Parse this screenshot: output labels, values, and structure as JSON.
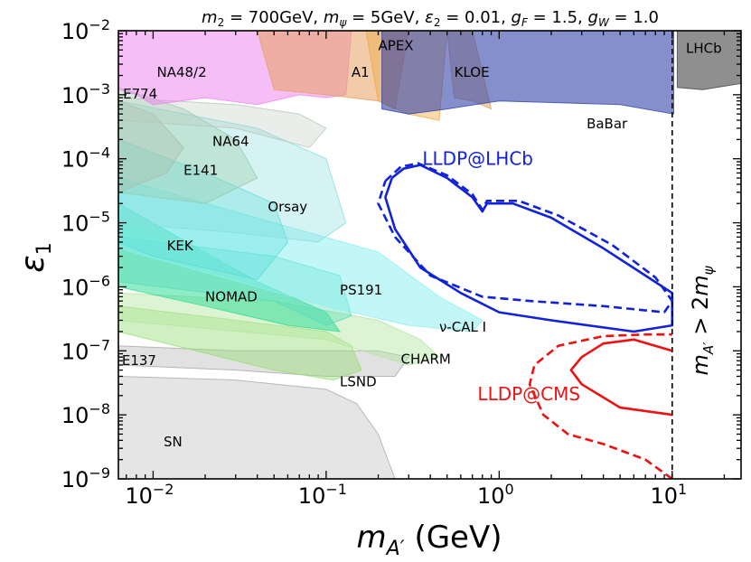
{
  "chart_data": {
    "type": "area",
    "title": "m₂ = 700GeV, mψ = 5GeV, ε₂ = 0.01, g_F = 1.5, g_W = 1.0",
    "title_parts": {
      "m2": "m",
      "m2_sub": "2",
      "m2_val": " = 700GeV, ",
      "mpsi": "m",
      "mpsi_sub": "ψ",
      "mpsi_val": " = 5GeV, ",
      "eps": "ε",
      "eps_sub": "2",
      "eps_val": " = 0.01, ",
      "gf": "g",
      "gf_sub": "F",
      "gf_val": " = 1.5, ",
      "gw": "g",
      "gw_sub": "W",
      "gw_val": " = 1.0"
    },
    "xlabel": "m_A′ (GeV)",
    "xlabel_parts": {
      "m": "m",
      "sub": "A′",
      "rest": " (GeV)"
    },
    "ylabel": "ε₁",
    "ylabel_parts": {
      "sym": "ε",
      "sub": "1"
    },
    "x_scale": "log",
    "y_scale": "log",
    "xlim": [
      0.0063,
      25
    ],
    "ylim": [
      1e-09,
      0.01
    ],
    "x_ticks": [
      {
        "value": 0.01,
        "base": "10",
        "exp": "−2"
      },
      {
        "value": 0.1,
        "base": "10",
        "exp": "−1"
      },
      {
        "value": 1,
        "base": "10",
        "exp": "0"
      },
      {
        "value": 10,
        "base": "10",
        "exp": "1"
      }
    ],
    "y_ticks": [
      {
        "value": 1e-09,
        "base": "10",
        "exp": "−9"
      },
      {
        "value": 1e-08,
        "base": "10",
        "exp": "−8"
      },
      {
        "value": 1e-07,
        "base": "10",
        "exp": "−7"
      },
      {
        "value": 1e-06,
        "base": "10",
        "exp": "−6"
      },
      {
        "value": 1e-05,
        "base": "10",
        "exp": "−5"
      },
      {
        "value": 0.0001,
        "base": "10",
        "exp": "−4"
      },
      {
        "value": 0.001,
        "base": "10",
        "exp": "−3"
      },
      {
        "value": 0.01,
        "base": "10",
        "exp": "−2"
      }
    ],
    "grid": false,
    "threshold": {
      "x": 10,
      "label": "m_A′ > 2m_ψ",
      "parts": {
        "m": "m",
        "sub": "A′",
        "mid": " > 2",
        "m2": "m",
        "sub2": "ψ"
      }
    },
    "regions": [
      {
        "name": "SN",
        "color": "#aaaaaa",
        "opacity": 0.3,
        "points": [
          [
            0.0063,
            4e-08
          ],
          [
            0.03,
            3.5e-08
          ],
          [
            0.1,
            2.5e-08
          ],
          [
            0.15,
            1.5e-08
          ],
          [
            0.2,
            5e-09
          ],
          [
            0.25,
            1e-09
          ],
          [
            0.0063,
            1e-09
          ]
        ]
      },
      {
        "name": "E137",
        "color": "#a8a8a8",
        "opacity": 0.35,
        "points": [
          [
            0.0063,
            1.2e-07
          ],
          [
            0.03,
            1e-07
          ],
          [
            0.2,
            1e-07
          ],
          [
            0.3,
            8e-08
          ],
          [
            0.25,
            4e-08
          ],
          [
            0.1,
            4e-08
          ],
          [
            0.03,
            5e-08
          ],
          [
            0.0063,
            6e-08
          ]
        ]
      },
      {
        "name": "LSND",
        "color": "#99dd77",
        "opacity": 0.45,
        "points": [
          [
            0.0063,
            5e-07
          ],
          [
            0.03,
            3e-07
          ],
          [
            0.1,
            2e-07
          ],
          [
            0.14,
            1.2e-07
          ],
          [
            0.16,
            5e-08
          ],
          [
            0.11,
            3.5e-08
          ],
          [
            0.05,
            5e-08
          ],
          [
            0.0063,
            2e-07
          ]
        ]
      },
      {
        "name": "CHARM",
        "color": "#b3e6a0",
        "opacity": 0.45,
        "points": [
          [
            0.0063,
            8e-07
          ],
          [
            0.05,
            6e-07
          ],
          [
            0.2,
            3e-07
          ],
          [
            0.35,
            1.5e-07
          ],
          [
            0.45,
            8e-08
          ],
          [
            0.3,
            6e-08
          ],
          [
            0.1,
            1.5e-07
          ],
          [
            0.0063,
            3e-07
          ]
        ]
      },
      {
        "name": "NOMAD",
        "color": "#33dd99",
        "opacity": 0.55,
        "points": [
          [
            0.0063,
            2e-05
          ],
          [
            0.04,
            1.2e-06
          ],
          [
            0.1,
            4e-07
          ],
          [
            0.12,
            2e-07
          ],
          [
            0.06,
            2.5e-07
          ],
          [
            0.02,
            5e-07
          ],
          [
            0.0063,
            1e-06
          ]
        ]
      },
      {
        "name": "PS191",
        "color": "#55ddbb",
        "opacity": 0.4,
        "points": [
          [
            0.0063,
            6e-06
          ],
          [
            0.05,
            3e-06
          ],
          [
            0.12,
            1.5e-06
          ],
          [
            0.14,
            3.5e-07
          ],
          [
            0.1,
            2.5e-07
          ],
          [
            0.05,
            6e-07
          ],
          [
            0.0063,
            1.2e-06
          ]
        ]
      },
      {
        "name": "nu-CAL I",
        "color": "#88f0f0",
        "opacity": 0.5,
        "points": [
          [
            0.0063,
            5e-05
          ],
          [
            0.05,
            1e-05
          ],
          [
            0.2,
            3.5e-06
          ],
          [
            0.45,
            7e-07
          ],
          [
            0.8,
            3e-07
          ],
          [
            0.7,
            2e-07
          ],
          [
            0.3,
            2.5e-07
          ],
          [
            0.1,
            5e-07
          ],
          [
            0.0063,
            4e-06
          ]
        ]
      },
      {
        "name": "KEK",
        "color": "#55dddd",
        "opacity": 0.35,
        "points": [
          [
            0.0063,
            0.0002
          ],
          [
            0.02,
            6e-05
          ],
          [
            0.05,
            2e-05
          ],
          [
            0.06,
            5e-06
          ],
          [
            0.04,
            1.3e-06
          ],
          [
            0.01,
            3e-06
          ],
          [
            0.0063,
            5e-06
          ]
        ]
      },
      {
        "name": "Orsay",
        "color": "#88dddd",
        "opacity": 0.35,
        "points": [
          [
            0.0063,
            0.0008
          ],
          [
            0.04,
            0.0003
          ],
          [
            0.1,
            0.0001
          ],
          [
            0.13,
            1e-05
          ],
          [
            0.09,
            5e-06
          ],
          [
            0.03,
            7e-06
          ],
          [
            0.0063,
            1e-05
          ]
        ]
      },
      {
        "name": "E141",
        "color": "#99ccaa",
        "opacity": 0.35,
        "points": [
          [
            0.0063,
            0.0013
          ],
          [
            0.015,
            0.0006
          ],
          [
            0.03,
            0.0002
          ],
          [
            0.04,
            5e-05
          ],
          [
            0.02,
            2e-05
          ],
          [
            0.0063,
            3e-05
          ]
        ]
      },
      {
        "name": "E774",
        "color": "#aabbaa",
        "opacity": 0.35,
        "points": [
          [
            0.0063,
            0.0008
          ],
          [
            0.01,
            0.0005
          ],
          [
            0.015,
            0.00015
          ],
          [
            0.012,
            6e-05
          ],
          [
            0.0063,
            3e-05
          ]
        ]
      },
      {
        "name": "NA64",
        "color": "#b8c8b8",
        "opacity": 0.3,
        "points": [
          [
            0.0063,
            0.0009
          ],
          [
            0.03,
            0.0007
          ],
          [
            0.07,
            0.0005
          ],
          [
            0.1,
            0.0003
          ],
          [
            0.08,
            0.00015
          ],
          [
            0.03,
            0.0003
          ],
          [
            0.0063,
            0.0004
          ]
        ]
      },
      {
        "name": "NA48/2",
        "color": "#ee88ee",
        "opacity": 0.55,
        "points": [
          [
            0.0063,
            0.01
          ],
          [
            0.14,
            0.01
          ],
          [
            0.13,
            0.001
          ],
          [
            0.1,
            0.0009
          ],
          [
            0.07,
            0.001
          ],
          [
            0.04,
            0.0007
          ],
          [
            0.02,
            0.0009
          ],
          [
            0.01,
            0.0007
          ],
          [
            0.008,
            0.001
          ],
          [
            0.0063,
            0.0012
          ]
        ]
      },
      {
        "name": "A1",
        "color": "#e8a060",
        "opacity": 0.55,
        "points": [
          [
            0.04,
            0.01
          ],
          [
            0.3,
            0.01
          ],
          [
            0.25,
            0.0006
          ],
          [
            0.2,
            0.0008
          ],
          [
            0.1,
            0.001
          ],
          [
            0.05,
            0.0012
          ]
        ]
      },
      {
        "name": "APEX",
        "color": "#eeaa44",
        "opacity": 0.45,
        "points": [
          [
            0.17,
            0.01
          ],
          [
            0.5,
            0.01
          ],
          [
            0.45,
            0.0004
          ],
          [
            0.3,
            0.0005
          ],
          [
            0.2,
            0.0008
          ]
        ]
      },
      {
        "name": "KLOE",
        "color": "#ddaa66",
        "opacity": 0.55,
        "points": [
          [
            0.5,
            0.01
          ],
          [
            0.7,
            0.01
          ],
          [
            0.9,
            0.0006
          ],
          [
            0.7,
            0.0008
          ],
          [
            0.55,
            0.0009
          ]
        ]
      },
      {
        "name": "BaBar",
        "color": "#3344aa",
        "opacity": 0.6,
        "points": [
          [
            0.21,
            0.01
          ],
          [
            10.2,
            0.01
          ],
          [
            10.2,
            0.0005
          ],
          [
            5,
            0.0007
          ],
          [
            1,
            0.0008
          ],
          [
            0.5,
            0.0006
          ],
          [
            0.3,
            0.0005
          ],
          [
            0.21,
            0.0006
          ]
        ]
      },
      {
        "name": "LHCb",
        "color": "#444444",
        "opacity": 0.6,
        "points": [
          [
            10.7,
            0.01
          ],
          [
            25,
            0.01
          ],
          [
            25,
            0.0015
          ],
          [
            15,
            0.0012
          ],
          [
            10.7,
            0.0013
          ]
        ]
      }
    ],
    "sensitivity_curves": [
      {
        "name": "LLDP@LHCb",
        "color": "#1122dd",
        "style": "solid",
        "points": [
          [
            0.24,
            5e-05
          ],
          [
            0.28,
            7e-05
          ],
          [
            0.35,
            8e-05
          ],
          [
            0.5,
            5e-05
          ],
          [
            0.7,
            2.5e-05
          ],
          [
            0.8,
            1.5e-05
          ],
          [
            0.85,
            2e-05
          ],
          [
            1.2,
            2e-05
          ],
          [
            2,
            1.2e-05
          ],
          [
            4,
            4e-06
          ],
          [
            7,
            1.5e-06
          ],
          [
            10,
            8e-07
          ],
          [
            10,
            2.5e-07
          ],
          [
            6,
            2e-07
          ],
          [
            2,
            3e-07
          ],
          [
            1,
            4e-07
          ],
          [
            0.6,
            8e-07
          ],
          [
            0.35,
            2e-06
          ],
          [
            0.25,
            8e-06
          ],
          [
            0.22,
            2.5e-05
          ],
          [
            0.24,
            5e-05
          ]
        ]
      },
      {
        "name": "LLDP@LHCb dashed",
        "color": "#1122dd",
        "style": "dashed",
        "points": [
          [
            0.22,
            4.5e-05
          ],
          [
            0.27,
            7.5e-05
          ],
          [
            0.34,
            8.5e-05
          ],
          [
            0.5,
            5.5e-05
          ],
          [
            0.7,
            2.8e-05
          ],
          [
            0.8,
            1.6e-05
          ],
          [
            0.85,
            2.2e-05
          ],
          [
            1.3,
            2.2e-05
          ],
          [
            2.2,
            1.3e-05
          ],
          [
            4.5,
            4.5e-06
          ],
          [
            8,
            1.4e-06
          ],
          [
            10,
            6e-07
          ],
          [
            9,
            4e-07
          ],
          [
            4,
            5e-07
          ],
          [
            1.5,
            6e-07
          ],
          [
            0.8,
            7e-07
          ],
          [
            0.4,
            1.5e-06
          ],
          [
            0.25,
            6e-06
          ],
          [
            0.2,
            2e-05
          ],
          [
            0.22,
            4.5e-05
          ]
        ]
      },
      {
        "name": "LLDP@CMS",
        "color": "#ee1111",
        "style": "solid",
        "points": [
          [
            10,
            1e-08
          ],
          [
            5,
            1.3e-08
          ],
          [
            3,
            3e-08
          ],
          [
            2.6,
            5e-08
          ],
          [
            3,
            8e-08
          ],
          [
            4,
            1.3e-07
          ],
          [
            6,
            1.5e-07
          ],
          [
            10,
            1e-07
          ]
        ]
      },
      {
        "name": "LLDP@CMS dashed",
        "color": "#ee1111",
        "style": "dashed",
        "points": [
          [
            10,
            1e-09
          ],
          [
            7,
            2e-09
          ],
          [
            4,
            3.5e-09
          ],
          [
            2.5,
            5e-09
          ],
          [
            1.8,
            1e-08
          ],
          [
            1.5,
            3e-08
          ],
          [
            1.6,
            6e-08
          ],
          [
            2.2,
            1.2e-07
          ],
          [
            4,
            1.7e-07
          ],
          [
            7,
            1.8e-07
          ],
          [
            10,
            1.8e-07
          ]
        ]
      }
    ],
    "annotations": [
      {
        "text": "NA48/2",
        "x": 0.0105,
        "y": 0.0019,
        "style": "region"
      },
      {
        "text": "E774",
        "x": 0.0067,
        "y": 0.00088,
        "style": "region"
      },
      {
        "text": "NA64",
        "x": 0.022,
        "y": 0.00016,
        "style": "region"
      },
      {
        "text": "E141",
        "x": 0.015,
        "y": 5.6e-05,
        "style": "region"
      },
      {
        "text": "Orsay",
        "x": 0.046,
        "y": 1.5e-05,
        "style": "region"
      },
      {
        "text": "KEK",
        "x": 0.012,
        "y": 3.7e-06,
        "style": "region"
      },
      {
        "text": "NOMAD",
        "x": 0.02,
        "y": 5.9e-07,
        "style": "region"
      },
      {
        "text": "PS191",
        "x": 0.12,
        "y": 7.6e-07,
        "style": "region"
      },
      {
        "text": "ν-CAL I",
        "x": 0.45,
        "y": 2e-07,
        "style": "region"
      },
      {
        "text": "CHARM",
        "x": 0.27,
        "y": 6.3e-08,
        "style": "region"
      },
      {
        "text": "E137",
        "x": 0.0066,
        "y": 6e-08,
        "style": "region"
      },
      {
        "text": "LSND",
        "x": 0.12,
        "y": 2.8e-08,
        "style": "region"
      },
      {
        "text": "SN",
        "x": 0.0115,
        "y": 3.2e-09,
        "style": "region"
      },
      {
        "text": "APEX",
        "x": 0.2,
        "y": 0.005,
        "style": "region"
      },
      {
        "text": "A1",
        "x": 0.14,
        "y": 0.0019,
        "style": "region"
      },
      {
        "text": "KLOE",
        "x": 0.55,
        "y": 0.0019,
        "style": "region"
      },
      {
        "text": "LHCb",
        "x": 12,
        "y": 0.0045,
        "style": "region"
      },
      {
        "text": "BaBar",
        "x": 3.2,
        "y": 0.0003,
        "style": "region"
      },
      {
        "text": "LLDP@LHCb",
        "x": 0.36,
        "y": 8e-05,
        "style": "blue"
      },
      {
        "text": "LLDP@CMS",
        "x": 0.75,
        "y": 1.7e-08,
        "style": "red"
      }
    ]
  }
}
